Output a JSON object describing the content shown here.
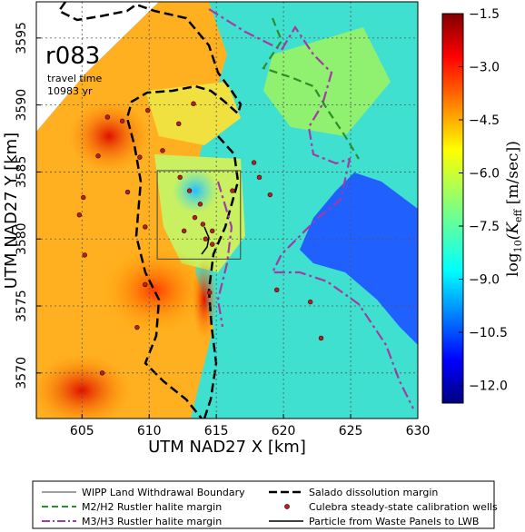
{
  "chart_data": {
    "type": "heatmap",
    "panel_label": "r083",
    "annotation_line1": "travel time",
    "annotation_line2": "10983 yr",
    "xlabel": "UTM NAD27 X [km]",
    "ylabel": "UTM NAD27 Y [km]",
    "xlim": [
      601.6,
      630
    ],
    "ylim": [
      3566.6,
      3597.7
    ],
    "xticks": [
      605,
      610,
      615,
      620,
      625,
      630
    ],
    "yticks": [
      3570,
      3575,
      3580,
      3585,
      3590,
      3595
    ],
    "grid": true,
    "colorbar": {
      "label": "log10(Keff [m/sec])",
      "label_main": "log",
      "label_sub10": "10",
      "label_rest_open": "(K",
      "label_sub_eff": "eff",
      "label_units": " [m/sec])",
      "range": [
        -12.5,
        -1.5
      ],
      "ticks": [
        -1.5,
        -3.0,
        -4.5,
        -6.0,
        -7.5,
        -9.0,
        -10.5,
        -12.0
      ],
      "tick_labels": [
        "−1.5",
        "−3.0",
        "−4.5",
        "−6.0",
        "−7.5",
        "−9.0",
        "−10.5",
        "−12.0"
      ],
      "colormap": "jet"
    },
    "wipp_boundary": {
      "x": [
        610.6,
        616.8
      ],
      "y": [
        3578.5,
        3585.1
      ]
    },
    "calibration_wells": [
      {
        "x": 606.9,
        "y": 3589.1
      },
      {
        "x": 608.0,
        "y": 3588.8
      },
      {
        "x": 609.3,
        "y": 3586.1
      },
      {
        "x": 606.2,
        "y": 3586.2
      },
      {
        "x": 609.9,
        "y": 3589.6
      },
      {
        "x": 612.2,
        "y": 3588.6
      },
      {
        "x": 613.3,
        "y": 3590.1
      },
      {
        "x": 611.0,
        "y": 3586.6
      },
      {
        "x": 612.3,
        "y": 3584.6
      },
      {
        "x": 613.0,
        "y": 3583.6
      },
      {
        "x": 613.8,
        "y": 3582.6
      },
      {
        "x": 613.4,
        "y": 3581.6
      },
      {
        "x": 614.0,
        "y": 3581.1
      },
      {
        "x": 612.6,
        "y": 3580.6
      },
      {
        "x": 614.2,
        "y": 3580.0
      },
      {
        "x": 614.7,
        "y": 3579.6
      },
      {
        "x": 616.2,
        "y": 3583.6
      },
      {
        "x": 617.8,
        "y": 3585.7
      },
      {
        "x": 618.2,
        "y": 3584.6
      },
      {
        "x": 619.0,
        "y": 3583.3
      },
      {
        "x": 608.4,
        "y": 3583.5
      },
      {
        "x": 605.1,
        "y": 3583.1
      },
      {
        "x": 604.8,
        "y": 3581.8
      },
      {
        "x": 605.2,
        "y": 3578.8
      },
      {
        "x": 609.7,
        "y": 3580.9
      },
      {
        "x": 609.7,
        "y": 3576.6
      },
      {
        "x": 614.5,
        "y": 3576.0
      },
      {
        "x": 619.5,
        "y": 3576.2
      },
      {
        "x": 622.0,
        "y": 3575.3
      },
      {
        "x": 614.7,
        "y": 3580.6
      },
      {
        "x": 606.5,
        "y": 3570.0
      },
      {
        "x": 622.8,
        "y": 3572.6
      },
      {
        "x": 609.1,
        "y": 3573.4
      }
    ],
    "legend": {
      "items": [
        {
          "label": "WIPP Land Withdrawal Boundary",
          "style": "solid-thin",
          "color": "#404040"
        },
        {
          "label": "Salado dissolution margin",
          "style": "dashed-thick",
          "color": "#000000"
        },
        {
          "label": "M2/H2 Rustler halite margin",
          "style": "dashed",
          "color": "#2a8f2a"
        },
        {
          "label": "Culebra steady-state calibration wells",
          "style": "dot",
          "color": "#b22222"
        },
        {
          "label": "M3/H3 Rustler halite margin",
          "style": "dashdot",
          "color": "#a23ba2"
        },
        {
          "label": "Particle from Waste Panels to LWB",
          "style": "solid",
          "color": "#000000"
        }
      ]
    }
  }
}
